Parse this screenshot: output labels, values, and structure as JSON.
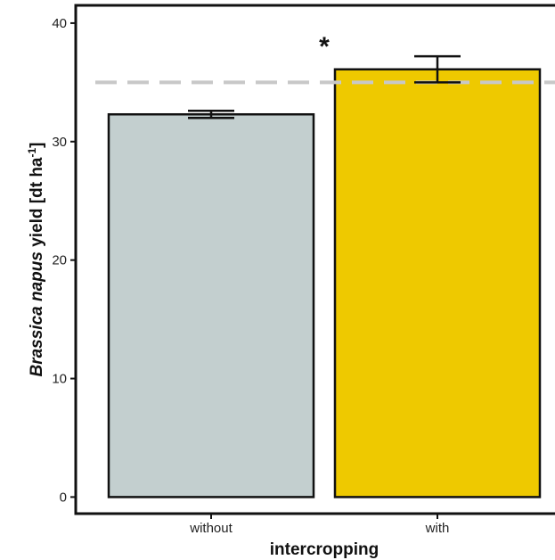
{
  "chart_data": {
    "type": "bar",
    "categories": [
      "without",
      "with"
    ],
    "values": [
      32.3,
      36.1
    ],
    "errors": [
      {
        "low": 32.0,
        "high": 32.6
      },
      {
        "low": 35.0,
        "high": 37.2
      }
    ],
    "colors": [
      "#c3cfcf",
      "#eec900"
    ],
    "reference_line": {
      "value": 35.0,
      "style": "dashed",
      "color": "#c8c8c8"
    },
    "annotation": "*",
    "xlabel": "intercropping",
    "ylabel": {
      "species": "Brassica napus",
      "text": " yield [dt ha",
      "superscript": "-1",
      "close": "]"
    },
    "ylim": [
      -1.4,
      41.5
    ],
    "yticks": [
      0,
      10,
      20,
      30,
      40
    ],
    "ytick_labels": [
      "0",
      "10",
      "20",
      "30",
      "40"
    ],
    "grid": false,
    "legend": "none"
  }
}
